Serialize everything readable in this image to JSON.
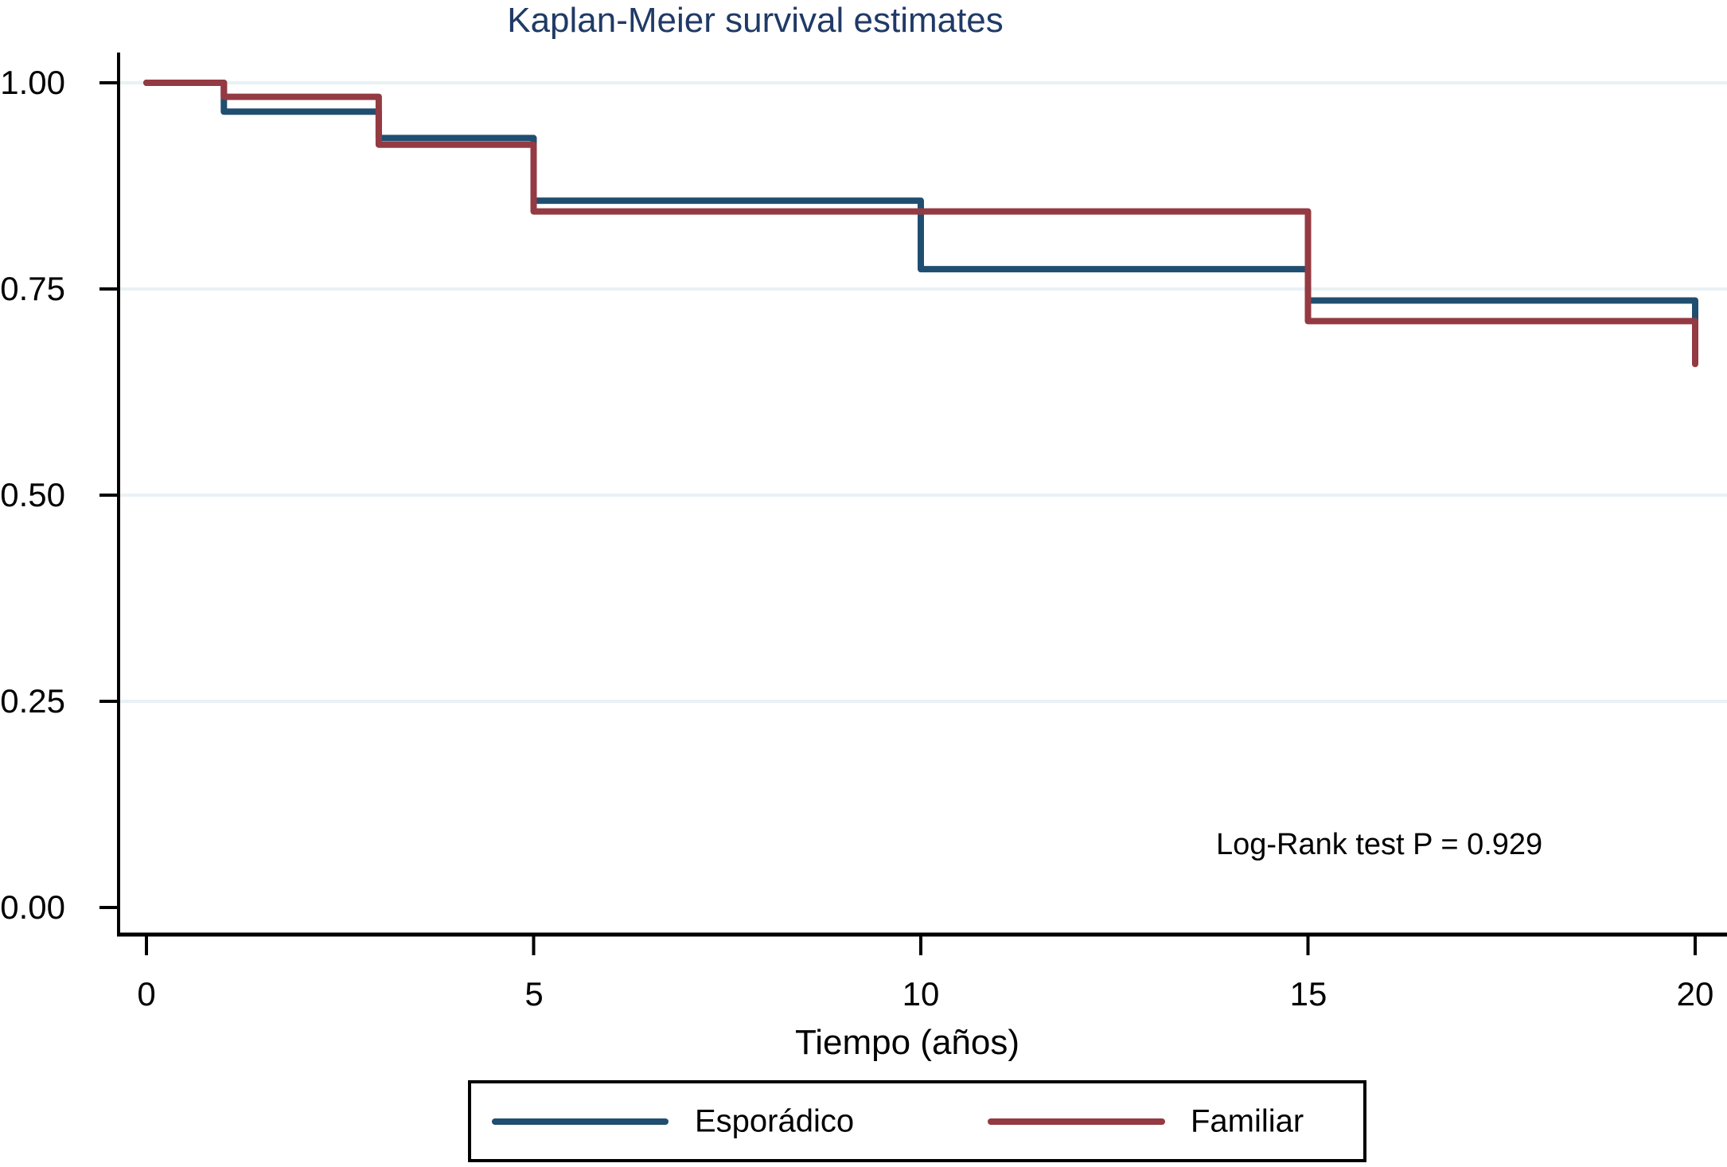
{
  "chart_data": {
    "type": "line",
    "subtype": "kaplan-meier-step",
    "title": "Kaplan-Meier survival estimates",
    "xlabel": "Tiempo (años)",
    "ylabel": "",
    "xlim": [
      0,
      20
    ],
    "ylim": [
      0,
      1
    ],
    "xticks": [
      0,
      5,
      10,
      15,
      20
    ],
    "xtick_labels": [
      "0",
      "5",
      "10",
      "15",
      "20"
    ],
    "ytick_values": [
      1.0,
      0.75,
      0.5,
      0.25,
      0.0
    ],
    "ytick_labels": [
      "1.00",
      "0.75",
      "0.50",
      "0.25",
      "0.00"
    ],
    "grid_values": [
      1.0,
      0.75,
      0.5,
      0.25
    ],
    "grid_on": true,
    "grid_color": "#e9f1f4",
    "axis_color": "#000000",
    "title_color": "#203a66",
    "annotation": "Log-Rank test P = 0.929",
    "legend_position": "bottom-center",
    "series": [
      {
        "name": "Esporádico",
        "color": "#204e70",
        "points": [
          {
            "t": 0,
            "s": 1.0
          },
          {
            "t": 1,
            "s": 0.965
          },
          {
            "t": 3,
            "s": 0.933
          },
          {
            "t": 5,
            "s": 0.857
          },
          {
            "t": 10,
            "s": 0.774
          },
          {
            "t": 15,
            "s": 0.736
          },
          {
            "t": 20,
            "s": 0.709
          }
        ]
      },
      {
        "name": "Familiar",
        "color": "#943a42",
        "points": [
          {
            "t": 0,
            "s": 1.0
          },
          {
            "t": 1,
            "s": 0.983
          },
          {
            "t": 3,
            "s": 0.925
          },
          {
            "t": 5,
            "s": 0.844
          },
          {
            "t": 15,
            "s": 0.711
          },
          {
            "t": 20,
            "s": 0.659
          }
        ]
      }
    ]
  }
}
